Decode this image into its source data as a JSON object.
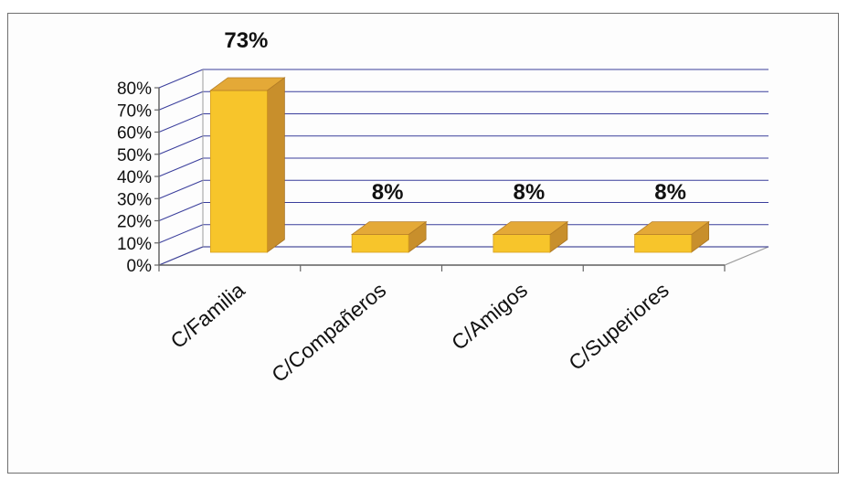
{
  "chart_data": {
    "type": "bar",
    "categories": [
      "C/Familia",
      "C/Compañeros",
      "C/Amigos",
      "C/Superiores"
    ],
    "values": [
      0.73,
      0.08,
      0.08,
      0.08
    ],
    "data_labels": [
      "73%",
      "8%",
      "8%",
      "8%"
    ],
    "yticks": [
      "0%",
      "10%",
      "20%",
      "30%",
      "40%",
      "50%",
      "60%",
      "70%",
      "80%"
    ],
    "ylim": [
      0,
      0.8
    ],
    "grid": true,
    "legend": "none",
    "style": "3d-column",
    "colors": {
      "front": "#F7C52B",
      "top": "#E4A937",
      "side": "#C88F2C",
      "grid": "#3a3e9c",
      "axis": "#666666"
    }
  }
}
